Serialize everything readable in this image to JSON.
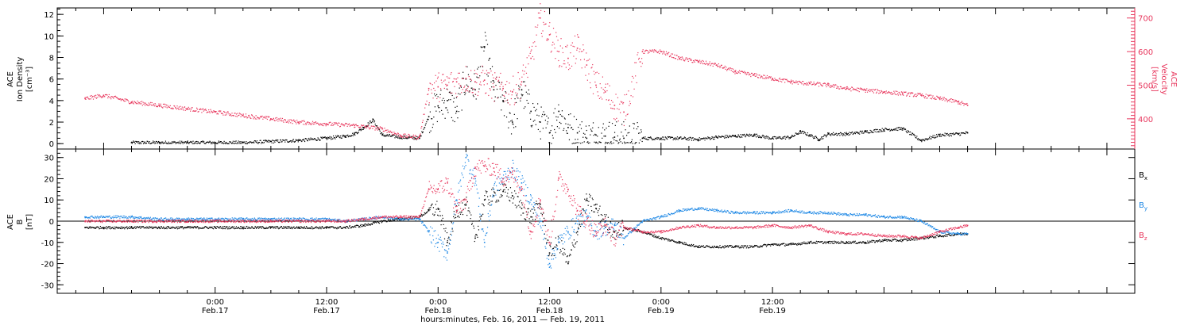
{
  "chart_data": [
    {
      "type": "scatter",
      "panel": "plasma",
      "ylabel_left": [
        "ACE",
        "Ion Density",
        "[cm⁻³]"
      ],
      "ylabel_right": [
        "ACE",
        "Velocity",
        "[km/s]"
      ],
      "ylim_left": [
        -0.5,
        12.6
      ],
      "yticks_left": [
        0,
        2,
        4,
        6,
        8,
        10,
        12
      ],
      "ylim_right": [
        310,
        730
      ],
      "yticks_right": [
        400,
        500,
        600,
        700
      ],
      "series": [
        {
          "axis": "left",
          "color": "#000000",
          "x": [
            -9,
            -6,
            -3,
            0,
            3,
            6,
            9,
            12,
            14,
            15,
            16,
            17,
            18,
            20,
            22,
            23,
            24,
            25,
            26,
            27,
            28,
            29,
            30,
            31,
            32,
            33,
            34,
            35,
            36,
            37,
            38,
            39,
            40,
            41,
            42,
            43,
            44,
            46,
            48,
            50,
            52,
            54,
            56,
            58,
            60,
            62,
            63,
            64,
            65,
            66,
            68,
            70,
            72,
            74,
            76,
            78,
            80,
            81
          ],
          "y": [
            0.1,
            0.1,
            0.1,
            0.1,
            0.1,
            0.2,
            0.3,
            0.5,
            0.7,
            0.9,
            1.5,
            2.2,
            0.8,
            0.6,
            0.5,
            2.5,
            3.5,
            4,
            3,
            6,
            5,
            9,
            5,
            4,
            2,
            5,
            3,
            2,
            1,
            3,
            1.5,
            1,
            0.5,
            0.8,
            0.7,
            0.6,
            0.5,
            0.5,
            0.5,
            0.5,
            0.4,
            0.6,
            0.7,
            0.8,
            0.5,
            0.6,
            1.1,
            0.8,
            0.4,
            0.9,
            0.9,
            1.1,
            1.3,
            1.4,
            0.3,
            0.8,
            0.9,
            1
          ]
        },
        {
          "axis": "right",
          "color": "#e8385e",
          "x": [
            -14,
            -12,
            -9,
            -6,
            -3,
            0,
            3,
            6,
            9,
            12,
            15,
            18,
            20,
            22,
            23,
            24,
            25,
            26,
            27,
            28,
            29,
            30,
            31,
            32,
            33,
            34,
            35,
            36,
            37,
            38,
            39,
            40,
            41,
            42,
            43,
            44,
            46,
            48,
            50,
            52,
            54,
            56,
            58,
            60,
            62,
            64,
            66,
            68,
            70,
            72,
            74,
            76,
            78,
            80,
            81
          ],
          "y": [
            460,
            470,
            450,
            440,
            430,
            420,
            410,
            400,
            390,
            385,
            380,
            370,
            350,
            345,
            490,
            495,
            500,
            510,
            520,
            510,
            515,
            495,
            490,
            480,
            510,
            580,
            700,
            650,
            600,
            580,
            610,
            560,
            500,
            480,
            440,
            420,
            600,
            600,
            580,
            570,
            560,
            540,
            530,
            520,
            510,
            505,
            500,
            490,
            485,
            480,
            475,
            470,
            460,
            450,
            440
          ]
        }
      ]
    },
    {
      "type": "line",
      "panel": "magnetic-field",
      "ylabel": [
        "ACE",
        "B",
        "[nT]"
      ],
      "ylim": [
        -34,
        34
      ],
      "yticks": [
        -30,
        -20,
        -10,
        0,
        10,
        20,
        30
      ],
      "legend": [
        "Bx",
        "By",
        "Bz"
      ],
      "series": [
        {
          "name": "Bx",
          "color": "#000000",
          "x": [
            -14,
            -12,
            -9,
            -6,
            -3,
            0,
            3,
            6,
            9,
            12,
            14,
            16,
            18,
            20,
            22,
            23,
            24,
            25,
            26,
            27,
            28,
            29,
            30,
            31,
            32,
            33,
            34,
            35,
            36,
            37,
            38,
            39,
            40,
            41,
            42,
            43,
            44,
            46,
            48,
            50,
            52,
            54,
            56,
            58,
            60,
            62,
            64,
            66,
            68,
            70,
            72,
            74,
            76,
            78,
            80,
            81
          ],
          "y": [
            -3,
            -3,
            -3,
            -3,
            -3,
            -3,
            -3,
            -3,
            -3,
            -3,
            -3,
            -2,
            0,
            1,
            2,
            5,
            6,
            -10,
            5,
            8,
            -8,
            10,
            12,
            14,
            12,
            6,
            2,
            8,
            -15,
            -10,
            -20,
            -5,
            10,
            6,
            0,
            -5,
            -3,
            -5,
            -8,
            -10,
            -12,
            -12,
            -12,
            -12,
            -11,
            -11,
            -10,
            -10,
            -10,
            -10,
            -9,
            -9,
            -8,
            -7,
            -6,
            -6
          ]
        },
        {
          "name": "By",
          "color": "#1e88e5",
          "x": [
            -14,
            -12,
            -9,
            -6,
            -3,
            0,
            3,
            6,
            9,
            12,
            14,
            16,
            18,
            20,
            22,
            23,
            24,
            25,
            26,
            27,
            28,
            29,
            30,
            31,
            32,
            33,
            34,
            35,
            36,
            37,
            38,
            39,
            40,
            41,
            42,
            43,
            44,
            46,
            48,
            50,
            52,
            54,
            56,
            58,
            60,
            62,
            64,
            66,
            68,
            70,
            72,
            74,
            76,
            78,
            80,
            81
          ],
          "y": [
            2,
            2,
            2,
            1,
            1,
            1,
            1,
            1,
            1,
            1,
            0,
            1,
            2,
            1,
            1,
            -5,
            -10,
            -15,
            10,
            30,
            20,
            -10,
            15,
            20,
            25,
            18,
            10,
            0,
            -20,
            -10,
            -5,
            0,
            2,
            -5,
            -3,
            -2,
            -8,
            0,
            2,
            5,
            6,
            5,
            4,
            4,
            4,
            5,
            4,
            4,
            3,
            3,
            2,
            2,
            0,
            -5,
            -6,
            -6
          ]
        },
        {
          "name": "Bz",
          "color": "#e8385e",
          "x": [
            -14,
            -12,
            -9,
            -6,
            -3,
            0,
            3,
            6,
            9,
            12,
            14,
            16,
            18,
            20,
            22,
            23,
            24,
            25,
            26,
            27,
            28,
            29,
            30,
            31,
            32,
            33,
            34,
            35,
            36,
            37,
            38,
            39,
            40,
            41,
            42,
            43,
            44,
            46,
            48,
            50,
            52,
            54,
            56,
            58,
            60,
            62,
            64,
            66,
            68,
            70,
            72,
            74,
            76,
            78,
            80,
            81
          ],
          "y": [
            0,
            0,
            0,
            0,
            0,
            0,
            0,
            0,
            0,
            0,
            0,
            1,
            2,
            2,
            2,
            15,
            15,
            18,
            5,
            10,
            25,
            26,
            25,
            20,
            22,
            15,
            -5,
            10,
            -10,
            20,
            15,
            5,
            0,
            -5,
            -2,
            -8,
            -3,
            -5,
            -5,
            -3,
            -2,
            -3,
            -3,
            -3,
            -2,
            -3,
            -2,
            -5,
            -6,
            -6,
            -7,
            -7,
            -8,
            -5,
            -3,
            -2
          ]
        }
      ]
    }
  ],
  "x_axis": {
    "range_hours": [
      -17,
      99
    ],
    "major_ticks": [
      {
        "x": 0,
        "time": "0:00",
        "date": "Feb.17"
      },
      {
        "x": 12,
        "time": "12:00",
        "date": "Feb.17"
      },
      {
        "x": 24,
        "time": "0:00",
        "date": "Feb.18"
      },
      {
        "x": 36,
        "time": "12:00",
        "date": "Feb.18"
      },
      {
        "x": 48,
        "time": "0:00",
        "date": "Feb.19"
      },
      {
        "x": 60,
        "time": "12:00",
        "date": "Feb.19"
      }
    ],
    "xlabel": "hours:minutes, Feb. 16, 2011 — Feb. 19, 2011"
  },
  "legend_labels": {
    "bx_main": "B",
    "bx_sub": "x",
    "by_main": "B",
    "by_sub": "y",
    "bz_main": "B",
    "bz_sub": "z"
  },
  "colors": {
    "black": "#000000",
    "blue": "#1e88e5",
    "pink": "#e8385e",
    "axis": "#000000"
  }
}
